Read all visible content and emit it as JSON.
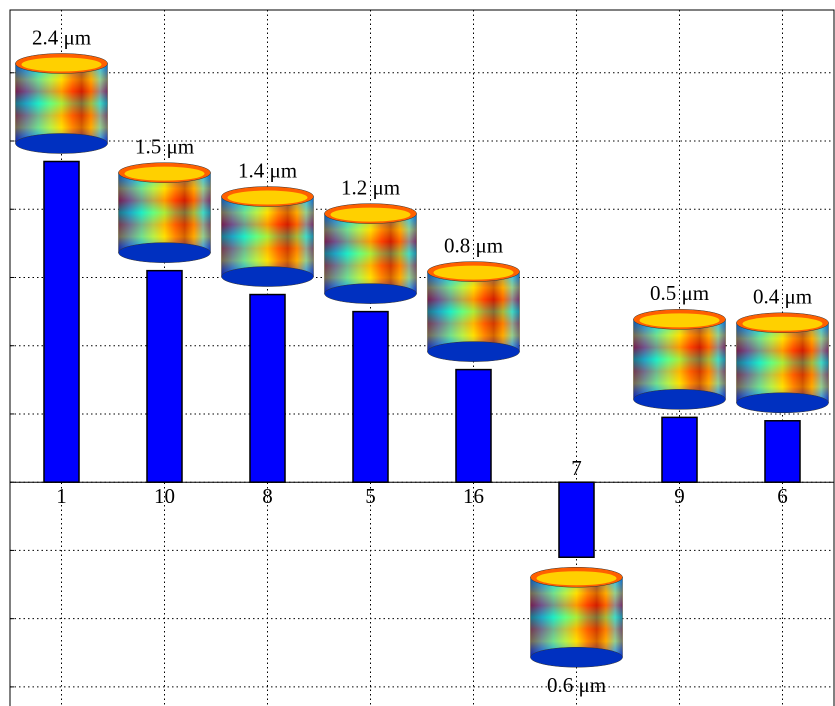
{
  "chart_data": {
    "type": "bar",
    "categories": [
      "1",
      "10",
      "8",
      "5",
      "16",
      "7",
      "9",
      "6"
    ],
    "values": [
      4.7,
      3.1,
      2.75,
      2.5,
      1.65,
      -1.1,
      0.95,
      0.9
    ],
    "annotations": [
      "2.4 μm",
      "1.5 μm",
      "1.4 μm",
      "1.2 μm",
      "0.8 μm",
      "0.6 μm",
      "0.5 μm",
      "0.4 μm"
    ],
    "color": "#0000ff",
    "ylim": [
      -3.28,
      6.92
    ],
    "yticks": [
      -3,
      -2,
      -1,
      0,
      1,
      2,
      3,
      4,
      5,
      6
    ],
    "grid": true
  }
}
